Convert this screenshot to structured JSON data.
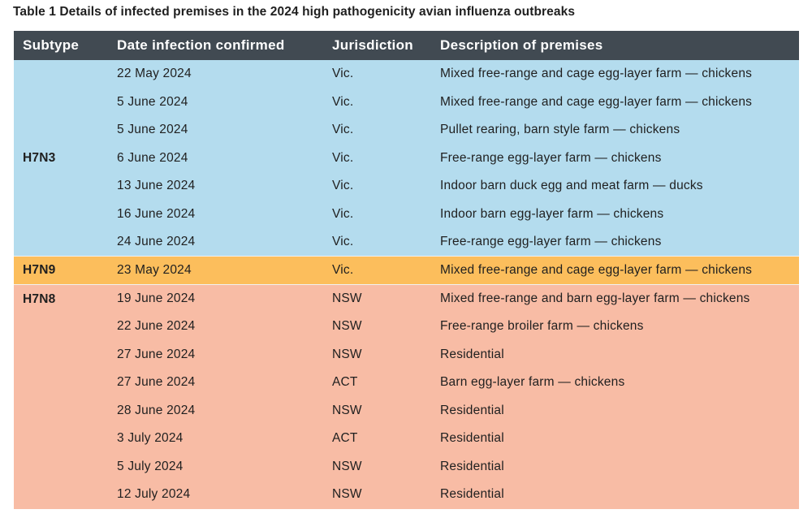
{
  "caption": "Table 1 Details of infected premises in the 2024 high pathogenicity avian influenza outbreaks",
  "colors": {
    "header": "#414a52",
    "h7n3": "#b4dcee",
    "h7n9": "#fcbe5c",
    "h7n8": "#f8bca5"
  },
  "headers": [
    "Subtype",
    "Date infection confirmed",
    "Jurisdiction",
    "Description of premises"
  ],
  "groups": [
    {
      "subtype": "H7N3",
      "rows": [
        {
          "date": "22 May 2024",
          "jurisdiction": "Vic.",
          "description": "Mixed free-range and cage egg-layer farm — chickens"
        },
        {
          "date": "5 June 2024",
          "jurisdiction": "Vic.",
          "description": "Mixed free-range and cage egg-layer farm — chickens"
        },
        {
          "date": "5 June 2024",
          "jurisdiction": "Vic.",
          "description": "Pullet rearing, barn style farm — chickens"
        },
        {
          "date": "6 June 2024",
          "jurisdiction": "Vic.",
          "description": "Free-range egg-layer farm — chickens"
        },
        {
          "date": "13 June 2024",
          "jurisdiction": "Vic.",
          "description": "Indoor barn duck egg and meat farm — ducks"
        },
        {
          "date": "16 June 2024",
          "jurisdiction": "Vic.",
          "description": "Indoor barn egg-layer farm — chickens"
        },
        {
          "date": "24 June 2024",
          "jurisdiction": "Vic.",
          "description": "Free-range egg-layer farm — chickens"
        }
      ]
    },
    {
      "subtype": "H7N9",
      "rows": [
        {
          "date": "23 May 2024",
          "jurisdiction": "Vic.",
          "description": "Mixed free-range and cage egg-layer farm — chickens"
        }
      ]
    },
    {
      "subtype": "H7N8",
      "rows": [
        {
          "date": "19 June 2024",
          "jurisdiction": "NSW",
          "description": "Mixed free-range and barn egg-layer farm — chickens"
        },
        {
          "date": "22 June 2024",
          "jurisdiction": "NSW",
          "description": "Free-range broiler farm — chickens"
        },
        {
          "date": "27 June 2024",
          "jurisdiction": "NSW",
          "description": "Residential"
        },
        {
          "date": "27 June 2024",
          "jurisdiction": "ACT",
          "description": "Barn egg-layer farm — chickens"
        },
        {
          "date": "28 June 2024",
          "jurisdiction": "NSW",
          "description": "Residential"
        },
        {
          "date": "3 July 2024",
          "jurisdiction": "ACT",
          "description": "Residential"
        },
        {
          "date": "5 July 2024",
          "jurisdiction": "NSW",
          "description": "Residential"
        },
        {
          "date": "12 July 2024",
          "jurisdiction": "NSW",
          "description": "Residential"
        }
      ]
    }
  ]
}
